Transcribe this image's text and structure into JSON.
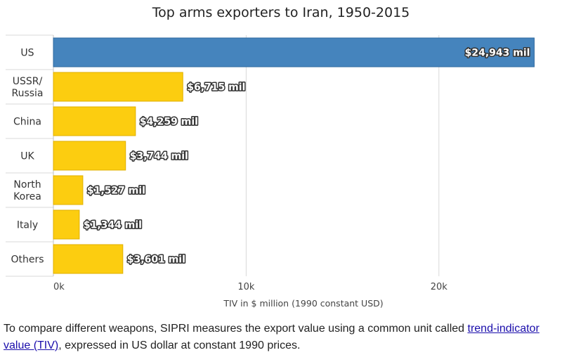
{
  "chart_data": {
    "type": "bar",
    "orientation": "horizontal",
    "title": "Top arms exporters to Iran, 1950-2015",
    "categories": [
      [
        "US"
      ],
      [
        "USSR/",
        "Russia"
      ],
      [
        "China"
      ],
      [
        "UK"
      ],
      [
        "North",
        "Korea"
      ],
      [
        "Italy"
      ],
      [
        "Others"
      ]
    ],
    "values": [
      24943,
      6715,
      4259,
      3744,
      1527,
      1344,
      3601
    ],
    "data_labels": [
      "$24,943 mil",
      "$6,715 mil",
      "$4,259 mil",
      "$3,744 mil",
      "$1,527 mil",
      "$1,344 mil",
      "$3,601 mil"
    ],
    "highlight_index": 0,
    "colors": {
      "highlight": "#4584bd",
      "default": "#fccd10",
      "highlight_border": "#2f6aa0",
      "default_border": "#e0b000",
      "grid": "#d8d8d8",
      "axis": "#c0c0c0"
    },
    "xlim": [
      0,
      25000
    ],
    "xticks": [
      0,
      10000,
      20000
    ],
    "xtick_labels": [
      "0k",
      "10k",
      "20k"
    ],
    "xlabel": "TIV in $ million (1990 constant USD)",
    "grid": true
  },
  "caption": {
    "text_before": "To compare different weapons, SIPRI measures the export value using a common unit called ",
    "link_text": "trend-indicator value (TIV)",
    "text_after": ", expressed in US dollar at constant 1990 prices."
  }
}
